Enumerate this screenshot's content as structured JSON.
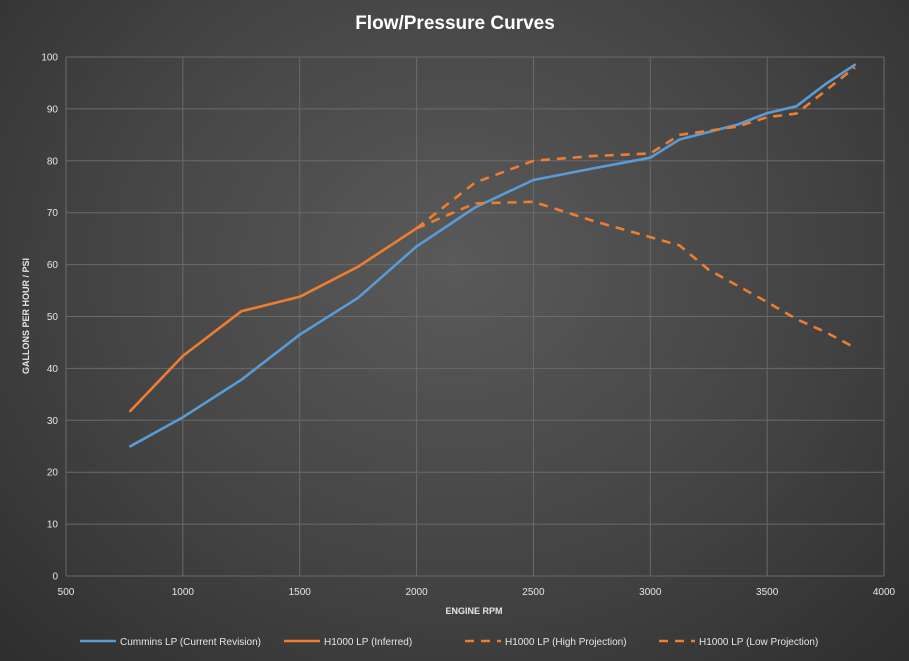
{
  "chart_data": {
    "type": "line",
    "title": "Flow/Pressure  Curves",
    "xlabel": "ENGINE RPM",
    "ylabel": "GALLONS PER HOUR / PSI",
    "xlim": [
      500,
      4000
    ],
    "ylim": [
      0,
      100
    ],
    "x_ticks": [
      500,
      1000,
      1500,
      2000,
      2500,
      3000,
      3500,
      4000
    ],
    "y_ticks": [
      0,
      10,
      20,
      30,
      40,
      50,
      60,
      70,
      80,
      90,
      100
    ],
    "grid": true,
    "legend_position": "bottom",
    "series": [
      {
        "name": "Cummins LP (Current Revision)",
        "color": "#5b9bd5",
        "dash": "solid",
        "points": [
          [
            775,
            25
          ],
          [
            1000,
            30.6
          ],
          [
            1250,
            37.8
          ],
          [
            1500,
            46.5
          ],
          [
            1750,
            53.6
          ],
          [
            2000,
            63.5
          ],
          [
            2250,
            71
          ],
          [
            2500,
            76.3
          ],
          [
            2750,
            78.5
          ],
          [
            3000,
            80.6
          ],
          [
            3125,
            84.1
          ],
          [
            3375,
            87
          ],
          [
            3500,
            89.2
          ],
          [
            3625,
            90.5
          ],
          [
            3750,
            94.8
          ],
          [
            3875,
            98.5
          ]
        ]
      },
      {
        "name": "H1000 LP (Inferred)",
        "color": "#ed7d31",
        "dash": "solid",
        "points": [
          [
            775,
            31.8
          ],
          [
            1000,
            42.4
          ],
          [
            1250,
            51
          ],
          [
            1500,
            53.8
          ],
          [
            1750,
            59.6
          ],
          [
            2000,
            67
          ]
        ]
      },
      {
        "name": "H1000 LP (High Projection)",
        "color": "#ed7d31",
        "dash": "dashed",
        "points": [
          [
            2000,
            67
          ],
          [
            2250,
            75.8
          ],
          [
            2500,
            80
          ],
          [
            2750,
            80.9
          ],
          [
            3000,
            81.4
          ],
          [
            3125,
            85
          ],
          [
            3375,
            86.6
          ],
          [
            3500,
            88.4
          ],
          [
            3625,
            89.1
          ],
          [
            3750,
            93.5
          ],
          [
            3875,
            98
          ]
        ]
      },
      {
        "name": "H1000 LP (Low Projection)",
        "color": "#ed7d31",
        "dash": "dashed",
        "points": [
          [
            2000,
            67
          ],
          [
            2250,
            71.8
          ],
          [
            2500,
            72.1
          ],
          [
            2750,
            68.5
          ],
          [
            3000,
            65.3
          ],
          [
            3125,
            63.7
          ],
          [
            3250,
            59
          ],
          [
            3500,
            52.8
          ],
          [
            3625,
            49.5
          ],
          [
            3750,
            47
          ],
          [
            3875,
            44
          ]
        ]
      }
    ]
  }
}
